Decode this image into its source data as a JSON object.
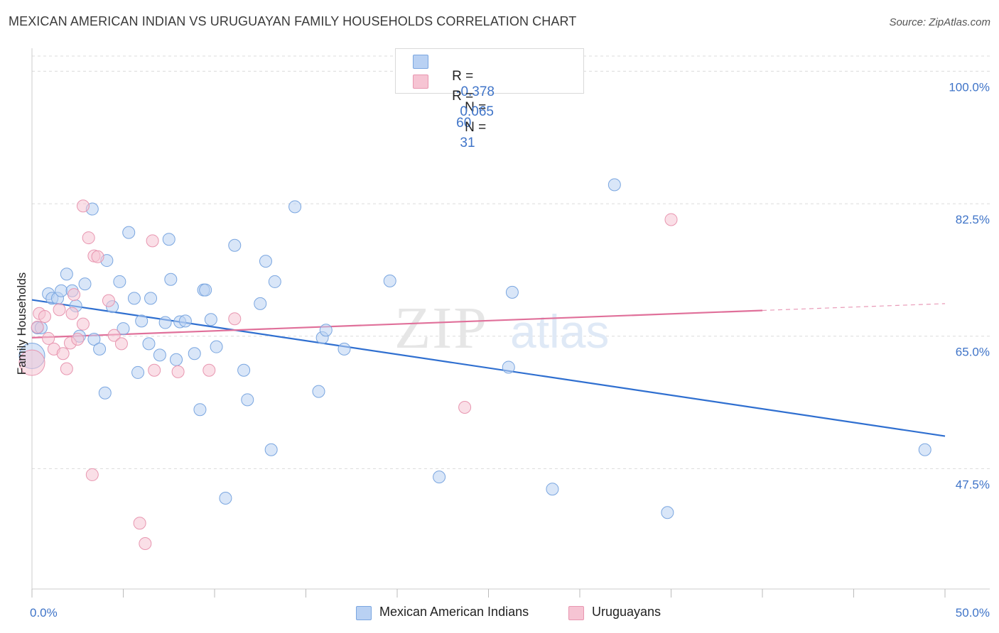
{
  "title": "MEXICAN AMERICAN INDIAN VS URUGUAYAN FAMILY HOUSEHOLDS CORRELATION CHART",
  "source": "Source: ZipAtlas.com",
  "watermark": {
    "zip": "ZIP",
    "atlas": "atlas"
  },
  "colors": {
    "blue_fill": "#b9d1f3",
    "blue_stroke": "#7aa6e0",
    "blue_line": "#2f6fd0",
    "pink_fill": "#f6c4d3",
    "pink_stroke": "#e896b0",
    "pink_line": "#e0709a",
    "axis_text": "#3f74c8",
    "grid": "#dcdcdc"
  },
  "legend": {
    "rows": [
      {
        "r_label": "R =",
        "r_value": "-0.378",
        "n_label": "N =",
        "n_value": "60",
        "series": "blue"
      },
      {
        "r_label": "R =",
        "r_value": " 0.065",
        "n_label": "N =",
        "n_value": " 31",
        "series": "pink"
      }
    ]
  },
  "bottom_legend": [
    {
      "label": "Mexican American Indians",
      "series": "blue"
    },
    {
      "label": "Uruguayans",
      "series": "pink"
    }
  ],
  "chart_data": {
    "type": "scatter",
    "title": "MEXICAN AMERICAN INDIAN VS URUGUAYAN FAMILY HOUSEHOLDS CORRELATION CHART",
    "xlabel": "",
    "ylabel": "Family Households",
    "xlim": [
      0,
      50
    ],
    "ylim": [
      31.6,
      103.6
    ],
    "x_tick_labels": [
      "0.0%",
      "50.0%"
    ],
    "y_ticks": [
      47.5,
      65.0,
      82.5,
      100.0
    ],
    "y_tick_labels": [
      "47.5%",
      "65.0%",
      "82.5%",
      "100.0%"
    ],
    "grid": true,
    "series": [
      {
        "name": "Mexican American Indians",
        "color": "blue",
        "r": -0.378,
        "n": 60,
        "trend": {
          "x0": 0,
          "y0": 69.8,
          "x1": 50,
          "y1": 51.8
        },
        "points": [
          [
            0.0,
            62.4
          ],
          [
            0.3,
            66.1
          ],
          [
            0.5,
            66.1
          ],
          [
            0.9,
            70.6
          ],
          [
            1.1,
            70.0
          ],
          [
            1.4,
            70.0
          ],
          [
            1.6,
            71.0
          ],
          [
            1.9,
            73.2
          ],
          [
            2.2,
            71.0
          ],
          [
            2.4,
            69.0
          ],
          [
            2.6,
            65.0
          ],
          [
            2.9,
            71.9
          ],
          [
            3.3,
            81.8
          ],
          [
            3.4,
            64.6
          ],
          [
            3.7,
            63.3
          ],
          [
            4.0,
            57.5
          ],
          [
            4.1,
            75.0
          ],
          [
            4.4,
            68.9
          ],
          [
            4.8,
            72.2
          ],
          [
            5.0,
            66.0
          ],
          [
            5.3,
            78.7
          ],
          [
            5.6,
            70.0
          ],
          [
            5.8,
            60.2
          ],
          [
            6.0,
            67.0
          ],
          [
            6.4,
            64.0
          ],
          [
            6.5,
            70.0
          ],
          [
            7.0,
            62.5
          ],
          [
            7.3,
            66.8
          ],
          [
            7.5,
            77.8
          ],
          [
            7.6,
            72.5
          ],
          [
            7.9,
            61.9
          ],
          [
            8.1,
            66.9
          ],
          [
            8.4,
            67.0
          ],
          [
            8.9,
            62.7
          ],
          [
            9.2,
            55.3
          ],
          [
            9.4,
            71.1
          ],
          [
            9.5,
            71.1
          ],
          [
            9.8,
            67.2
          ],
          [
            10.1,
            63.6
          ],
          [
            10.6,
            43.6
          ],
          [
            11.1,
            77.0
          ],
          [
            11.6,
            60.5
          ],
          [
            11.8,
            56.6
          ],
          [
            12.5,
            69.3
          ],
          [
            12.8,
            74.9
          ],
          [
            13.1,
            50.0
          ],
          [
            13.3,
            72.2
          ],
          [
            14.4,
            82.1
          ],
          [
            15.7,
            57.7
          ],
          [
            15.9,
            64.8
          ],
          [
            16.1,
            65.8
          ],
          [
            17.1,
            63.3
          ],
          [
            19.6,
            72.3
          ],
          [
            22.3,
            46.4
          ],
          [
            26.1,
            60.9
          ],
          [
            26.3,
            70.8
          ],
          [
            28.5,
            44.8
          ],
          [
            31.9,
            85.0
          ],
          [
            34.8,
            41.7
          ],
          [
            48.9,
            50.0
          ]
        ]
      },
      {
        "name": "Uruguayans",
        "color": "pink",
        "r": 0.065,
        "n": 31,
        "trend": {
          "x0": 0,
          "y0": 64.8,
          "x1": 40.0,
          "y1": 68.4
        },
        "trend_dashed": {
          "x0": 40.0,
          "y0": 68.4,
          "x1": 50,
          "y1": 69.3
        },
        "points": [
          [
            0.0,
            61.5
          ],
          [
            0.3,
            66.2
          ],
          [
            0.4,
            68.0
          ],
          [
            0.7,
            67.6
          ],
          [
            0.9,
            64.7
          ],
          [
            1.2,
            63.3
          ],
          [
            1.5,
            68.5
          ],
          [
            1.7,
            62.7
          ],
          [
            1.9,
            60.7
          ],
          [
            2.1,
            64.1
          ],
          [
            2.2,
            68.0
          ],
          [
            2.3,
            70.5
          ],
          [
            2.5,
            64.6
          ],
          [
            2.8,
            66.6
          ],
          [
            2.8,
            82.2
          ],
          [
            3.1,
            78.0
          ],
          [
            3.3,
            46.7
          ],
          [
            3.4,
            75.6
          ],
          [
            3.6,
            75.5
          ],
          [
            4.2,
            69.7
          ],
          [
            4.5,
            65.1
          ],
          [
            4.9,
            64.0
          ],
          [
            5.9,
            40.3
          ],
          [
            6.2,
            37.6
          ],
          [
            6.6,
            77.6
          ],
          [
            6.7,
            60.5
          ],
          [
            8.0,
            60.3
          ],
          [
            9.7,
            60.5
          ],
          [
            11.1,
            67.3
          ],
          [
            23.7,
            55.6
          ],
          [
            35.0,
            80.4
          ]
        ]
      }
    ]
  }
}
